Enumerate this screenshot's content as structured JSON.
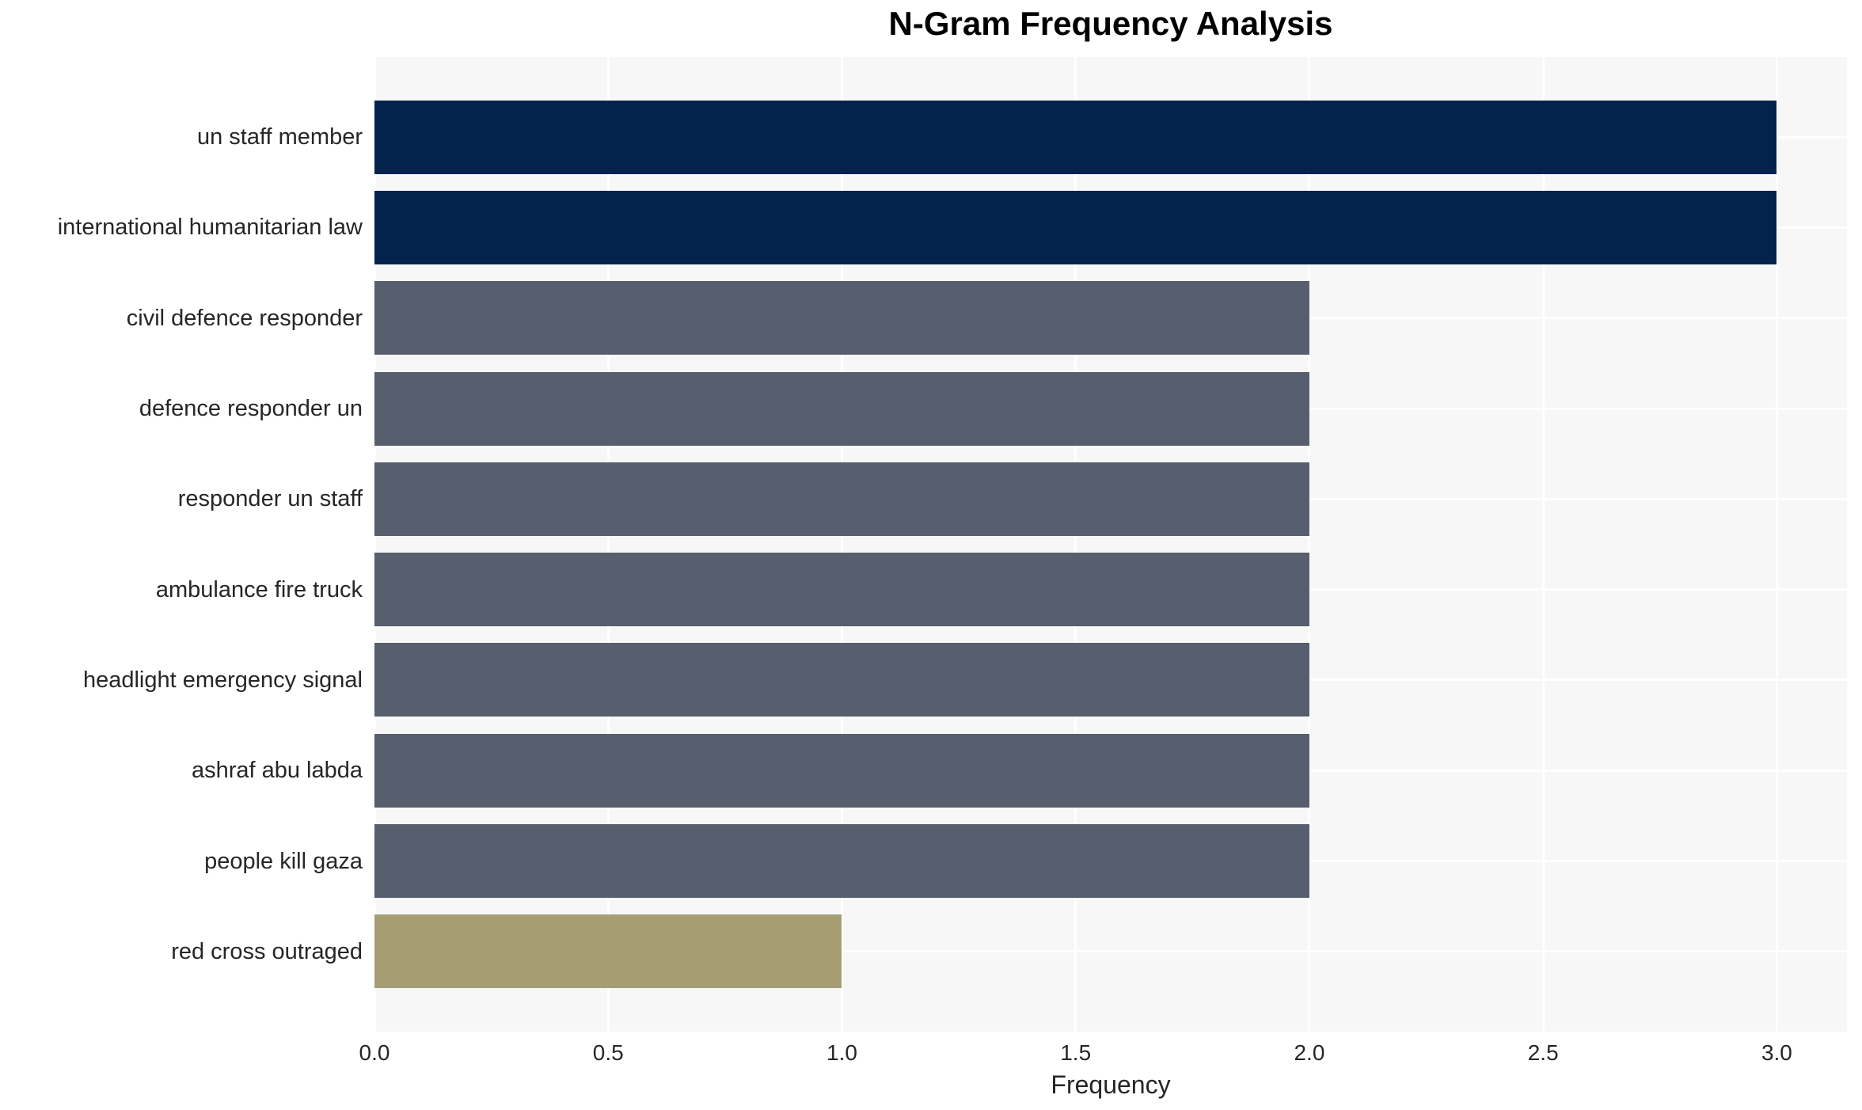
{
  "chart_data": {
    "type": "bar",
    "orientation": "horizontal",
    "title": "N-Gram Frequency Analysis",
    "xlabel": "Frequency",
    "ylabel": "",
    "categories": [
      "un staff member",
      "international humanitarian law",
      "civil defence responder",
      "defence responder un",
      "responder un staff",
      "ambulance fire truck",
      "headlight emergency signal",
      "ashraf abu labda",
      "people kill gaza",
      "red cross outraged"
    ],
    "values": [
      3,
      3,
      2,
      2,
      2,
      2,
      2,
      2,
      2,
      1
    ],
    "bar_colors": [
      "#04234c",
      "#04234c",
      "#575e6d",
      "#575e6d",
      "#575e6d",
      "#575e6d",
      "#575e6d",
      "#575e6d",
      "#575e6d",
      "#a69e72"
    ],
    "xticks": [
      0.0,
      0.5,
      1.0,
      1.5,
      2.0,
      2.5,
      3.0
    ],
    "xtick_labels": [
      "0.0",
      "0.5",
      "1.0",
      "1.5",
      "2.0",
      "2.5",
      "3.0"
    ],
    "xlim": [
      0,
      3.15
    ],
    "grid": true,
    "legend": false,
    "style": {
      "plot_bg": "#f7f7f7",
      "grid_color": "#ffffff",
      "text_color": "#262626",
      "page_bg": "#ffffff"
    }
  }
}
